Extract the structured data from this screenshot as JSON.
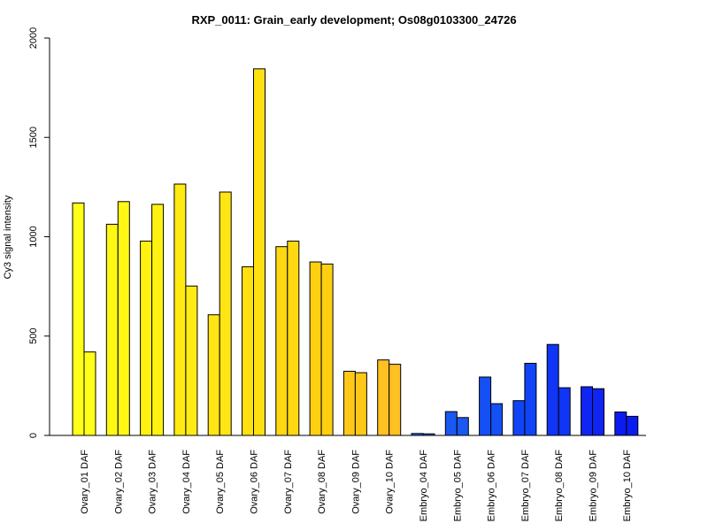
{
  "chart_data": {
    "type": "bar",
    "title": "RXP_0011: Grain_early development; Os08g0103300_24726",
    "xlabel": "",
    "ylabel": "Cy3 signal intensity",
    "ylim": [
      0,
      2000
    ],
    "yticks": [
      0,
      500,
      1000,
      1500,
      2000
    ],
    "grid": false,
    "categories": [
      "Ovary_01 DAF",
      "Ovary_02 DAF",
      "Ovary_03 DAF",
      "Ovary_04 DAF",
      "Ovary_05 DAF",
      "Ovary_06 DAF",
      "Ovary_07 DAF",
      "Ovary_08 DAF",
      "Ovary_09 DAF",
      "Ovary_10 DAF",
      "Embryo_04 DAF",
      "Embryo_05 DAF",
      "Embryo_06 DAF",
      "Embryo_07 DAF",
      "Embryo_08 DAF",
      "Embryo_09 DAF",
      "Embryo_10 DAF"
    ],
    "series": [
      {
        "values": [
          1170,
          1063,
          978,
          1265,
          607,
          849,
          950,
          873,
          323,
          380,
          10,
          120,
          294,
          175,
          458,
          245,
          118
        ]
      },
      {
        "values": [
          420,
          1177,
          1163,
          752,
          1225,
          1845,
          978,
          863,
          316,
          358,
          8,
          90,
          160,
          363,
          240,
          235,
          96
        ]
      }
    ],
    "colors": [
      "#FFFF19",
      "#FFF814",
      "#FFF211",
      "#FFEB11",
      "#FFE511",
      "#FFE011",
      "#FFD811",
      "#FFD011",
      "#FFC819",
      "#FFC022",
      "#1F5FE8",
      "#1A58F2",
      "#1550F5",
      "#1144F6",
      "#1035F5",
      "#0F25F2",
      "#0A1CF0"
    ]
  }
}
